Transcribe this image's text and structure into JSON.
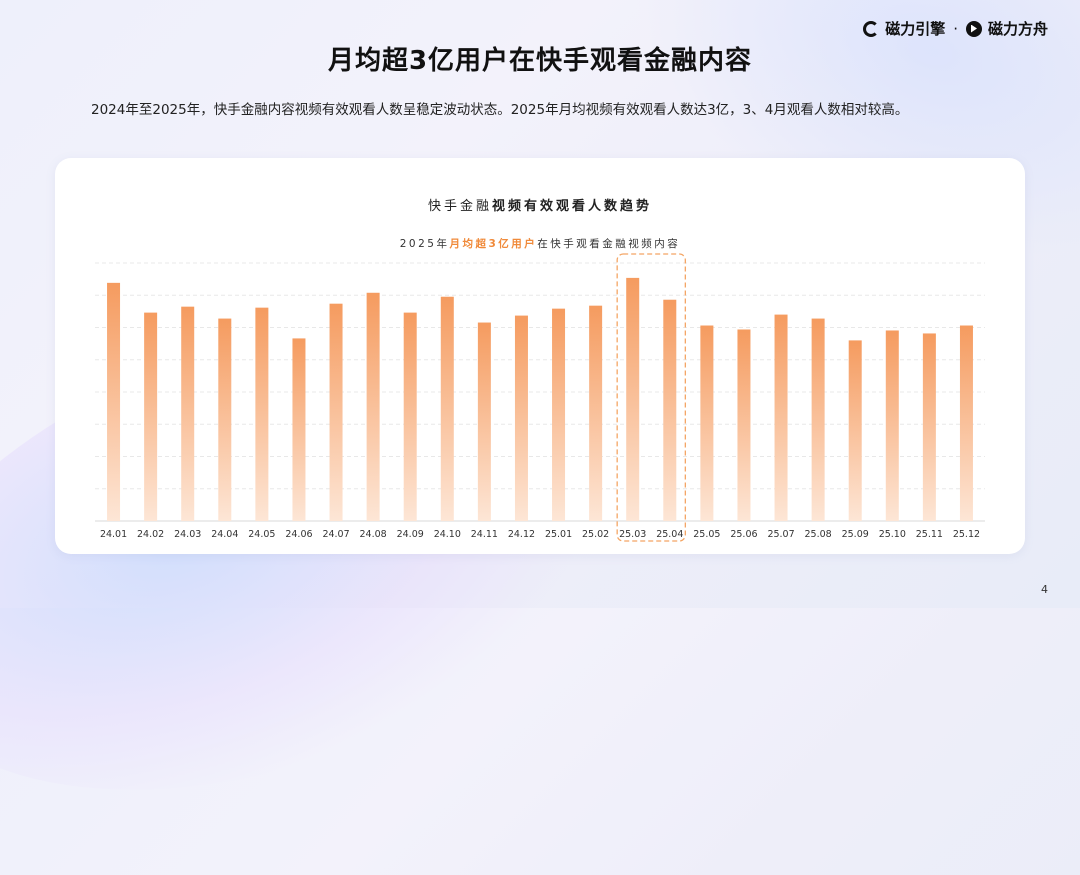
{
  "brand": {
    "logo_left": "磁力引擎",
    "separator": "·",
    "logo_right": "磁力方舟"
  },
  "page": {
    "title": "月均超3亿用户在快手观看金融内容",
    "subtitle": "2024年至2025年，快手金融内容视频有效观看人数呈稳定波动状态。2025年月均视频有效观看人数达3亿，3、4月观看人数相对较高。",
    "page_number": "4"
  },
  "chart_data": {
    "type": "bar",
    "title_prefix": "快手金融",
    "title_bold": "视频有效观看人数趋势",
    "subtitle_prefix": "2025年",
    "subtitle_highlight": "月均超3亿用户",
    "subtitle_suffix": "在快手观看金融视频内容",
    "categories": [
      "24.01",
      "24.02",
      "24.03",
      "24.04",
      "24.05",
      "24.06",
      "24.07",
      "24.08",
      "24.09",
      "24.10",
      "24.11",
      "24.12",
      "25.01",
      "25.02",
      "25.03",
      "25.04",
      "25.05",
      "25.06",
      "25.07",
      "25.08",
      "25.09",
      "25.10",
      "25.11",
      "25.12"
    ],
    "values": [
      240,
      210,
      216,
      204,
      215,
      184,
      219,
      230,
      210,
      226,
      200,
      207,
      214,
      217,
      245,
      223,
      197,
      193,
      208,
      204,
      182,
      192,
      189,
      197
    ],
    "ylim": [
      0,
      260
    ],
    "grid": true,
    "highlight_categories": [
      "25.03",
      "25.04"
    ],
    "colors": {
      "bar_top": "#f59b5f",
      "bar_bottom": "#fde6d6",
      "highlight_border": "#f4a564"
    }
  }
}
